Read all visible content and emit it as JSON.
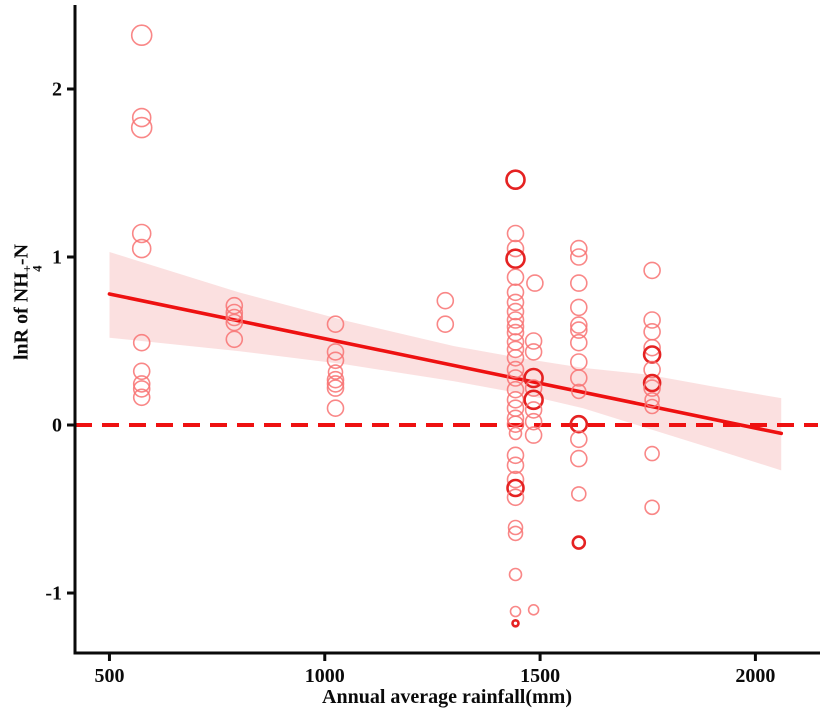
{
  "figure": {
    "x_title": "Annual average rainfall(mm)",
    "y_title_pre": "lnR of NH",
    "y_title_sub": "4",
    "y_title_sup": "+",
    "y_title_post": "-N"
  },
  "chart_data": {
    "type": "scatter",
    "title": "",
    "xlabel": "Annual average rainfall(mm)",
    "ylabel": "lnR of NH4+-N",
    "x_ticks": [
      500,
      1000,
      1500,
      2000
    ],
    "y_ticks": [
      -1,
      0,
      1,
      2
    ],
    "xlim": [
      420,
      2150
    ],
    "ylim": [
      -1.357,
      2.5
    ],
    "grid": false,
    "legend": "none",
    "colors": {
      "point": "#f87272",
      "point_bold": "#e52222",
      "line": "#ee1111",
      "zero_line": "#ee1111",
      "band": "#f5b4b4",
      "axis": "#0a0a0a"
    },
    "zero_line_y": 0,
    "regression": {
      "x1": 500,
      "y1": 0.78,
      "x2": 2060,
      "y2": -0.05
    },
    "confidence_band": {
      "upper": [
        [
          500,
          1.03
        ],
        [
          800,
          0.79
        ],
        [
          1050,
          0.62
        ],
        [
          1300,
          0.47
        ],
        [
          1450,
          0.4
        ],
        [
          1600,
          0.34
        ],
        [
          1750,
          0.3
        ],
        [
          1900,
          0.23
        ],
        [
          2060,
          0.16
        ]
      ],
      "lower": [
        [
          500,
          0.52
        ],
        [
          800,
          0.44
        ],
        [
          1050,
          0.36
        ],
        [
          1300,
          0.26
        ],
        [
          1450,
          0.19
        ],
        [
          1600,
          0.1
        ],
        [
          1750,
          -0.02
        ],
        [
          1900,
          -0.14
        ],
        [
          2060,
          -0.27
        ]
      ]
    },
    "points": [
      [
        575,
        2.32,
        10,
        0
      ],
      [
        575,
        1.83,
        9,
        0
      ],
      [
        575,
        1.77,
        10,
        0
      ],
      [
        575,
        1.14,
        9,
        0
      ],
      [
        575,
        1.05,
        9,
        0
      ],
      [
        575,
        0.49,
        8,
        0
      ],
      [
        575,
        0.32,
        8,
        0
      ],
      [
        575,
        0.245,
        8,
        0
      ],
      [
        575,
        0.215,
        8,
        0
      ],
      [
        575,
        0.165,
        8,
        0
      ],
      [
        790,
        0.71,
        8,
        0
      ],
      [
        790,
        0.67,
        8,
        0
      ],
      [
        790,
        0.64,
        8,
        0
      ],
      [
        790,
        0.61,
        8,
        0
      ],
      [
        790,
        0.51,
        8,
        0
      ],
      [
        1025,
        0.6,
        8,
        0
      ],
      [
        1025,
        0.435,
        8,
        0
      ],
      [
        1025,
        0.385,
        8,
        0
      ],
      [
        1025,
        0.315,
        7,
        0
      ],
      [
        1025,
        0.27,
        8,
        0
      ],
      [
        1025,
        0.245,
        8,
        0
      ],
      [
        1025,
        0.22,
        8,
        0
      ],
      [
        1025,
        0.1,
        8,
        0
      ],
      [
        1280,
        0.74,
        8,
        0
      ],
      [
        1280,
        0.6,
        8,
        0
      ],
      [
        1443,
        1.46,
        9,
        1
      ],
      [
        1443,
        1.14,
        8,
        0
      ],
      [
        1443,
        1.05,
        8,
        0
      ],
      [
        1443,
        0.99,
        9,
        1
      ],
      [
        1443,
        0.88,
        8,
        0
      ],
      [
        1488,
        0.845,
        8,
        0
      ],
      [
        1443,
        0.79,
        8,
        0
      ],
      [
        1443,
        0.73,
        8,
        0
      ],
      [
        1443,
        0.675,
        8,
        0
      ],
      [
        1443,
        0.625,
        8,
        0
      ],
      [
        1443,
        0.585,
        8,
        0
      ],
      [
        1443,
        0.55,
        8,
        0
      ],
      [
        1443,
        0.495,
        8,
        0
      ],
      [
        1443,
        0.45,
        8,
        0
      ],
      [
        1443,
        0.4,
        8,
        0
      ],
      [
        1443,
        0.33,
        8,
        0
      ],
      [
        1443,
        0.28,
        8,
        0
      ],
      [
        1443,
        0.21,
        8,
        0
      ],
      [
        1443,
        0.15,
        8,
        0
      ],
      [
        1443,
        0.1,
        8,
        0
      ],
      [
        1443,
        0.04,
        8,
        0
      ],
      [
        1443,
        0.005,
        8,
        0
      ],
      [
        1443,
        -0.05,
        6,
        0
      ],
      [
        1443,
        -0.18,
        8,
        0
      ],
      [
        1443,
        -0.24,
        8,
        0
      ],
      [
        1443,
        -0.325,
        8,
        0
      ],
      [
        1443,
        -0.375,
        8,
        1
      ],
      [
        1443,
        -0.43,
        8,
        0
      ],
      [
        1443,
        -0.61,
        7,
        0
      ],
      [
        1443,
        -0.645,
        7,
        0
      ],
      [
        1443,
        -0.89,
        6,
        0
      ],
      [
        1443,
        -1.11,
        5,
        0
      ],
      [
        1443,
        -1.18,
        3,
        1
      ],
      [
        1485,
        0.5,
        8,
        0
      ],
      [
        1485,
        0.435,
        8,
        0
      ],
      [
        1485,
        0.28,
        9,
        1
      ],
      [
        1485,
        0.22,
        8,
        0
      ],
      [
        1485,
        0.15,
        9,
        1
      ],
      [
        1485,
        0.09,
        8,
        0
      ],
      [
        1485,
        0.02,
        8,
        0
      ],
      [
        1485,
        -0.06,
        8,
        0
      ],
      [
        1485,
        -1.1,
        5,
        0
      ],
      [
        1590,
        1.05,
        8,
        0
      ],
      [
        1590,
        1.0,
        8,
        0
      ],
      [
        1590,
        0.845,
        8,
        0
      ],
      [
        1590,
        0.7,
        8,
        0
      ],
      [
        1590,
        0.595,
        8,
        0
      ],
      [
        1590,
        0.565,
        8,
        0
      ],
      [
        1590,
        0.49,
        8,
        0
      ],
      [
        1590,
        0.375,
        8,
        0
      ],
      [
        1590,
        0.28,
        8,
        0
      ],
      [
        1590,
        0.2,
        7,
        0
      ],
      [
        1590,
        0.005,
        8,
        1
      ],
      [
        1590,
        -0.085,
        8,
        0
      ],
      [
        1590,
        -0.2,
        8,
        0
      ],
      [
        1590,
        -0.41,
        7,
        0
      ],
      [
        1590,
        -0.7,
        6,
        1
      ],
      [
        1760,
        0.92,
        8,
        0
      ],
      [
        1760,
        0.625,
        8,
        0
      ],
      [
        1760,
        0.555,
        8,
        0
      ],
      [
        1760,
        0.46,
        8,
        0
      ],
      [
        1760,
        0.42,
        8,
        1
      ],
      [
        1760,
        0.33,
        8,
        0
      ],
      [
        1760,
        0.25,
        8,
        1
      ],
      [
        1760,
        0.22,
        8,
        0
      ],
      [
        1760,
        0.15,
        7,
        0
      ],
      [
        1760,
        0.11,
        7,
        0
      ],
      [
        1760,
        -0.17,
        7,
        0
      ],
      [
        1760,
        -0.49,
        7,
        0
      ]
    ]
  }
}
